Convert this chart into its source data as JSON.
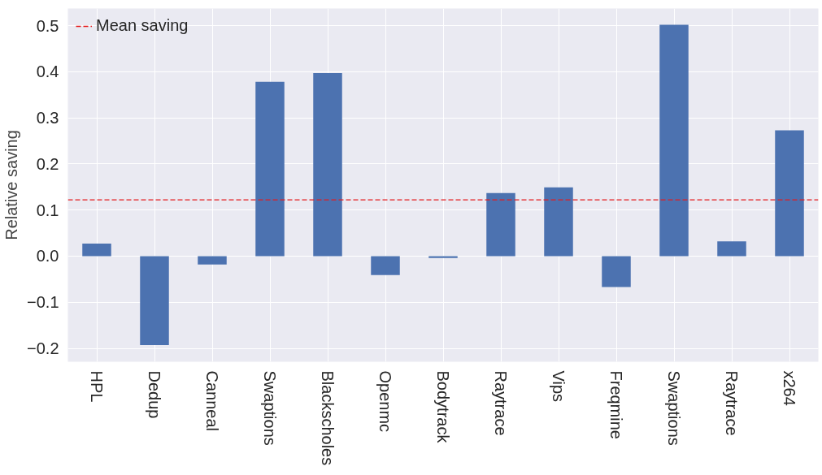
{
  "chart_data": {
    "type": "bar",
    "ylabel": "Relative saving",
    "categories": [
      "HPL",
      "Dedup",
      "Canneal",
      "Swaptions",
      "Blackscholes",
      "Openmc",
      "Bodytrack",
      "Raytrace",
      "Vips",
      "Freqmine",
      "Swaptions",
      "Raytrace",
      "x264"
    ],
    "values": [
      0.027,
      -0.193,
      -0.018,
      0.378,
      0.397,
      -0.041,
      -0.004,
      0.137,
      0.149,
      -0.067,
      0.502,
      0.032,
      0.273
    ],
    "color": "#4c72b0",
    "ylim": [
      -0.229,
      0.537
    ],
    "yticks": [
      {
        "value": -0.2,
        "label": "−0.2"
      },
      {
        "value": -0.1,
        "label": "−0.1"
      },
      {
        "value": 0.0,
        "label": "0.0"
      },
      0.1,
      0.2,
      0.3,
      0.4,
      0.5
    ],
    "ref_lines": [
      {
        "axis": "y",
        "value": 0.122,
        "label": "Mean saving",
        "color": "#e41a1c",
        "line_style": "dashed"
      }
    ],
    "grid": true,
    "legend": "top left"
  }
}
